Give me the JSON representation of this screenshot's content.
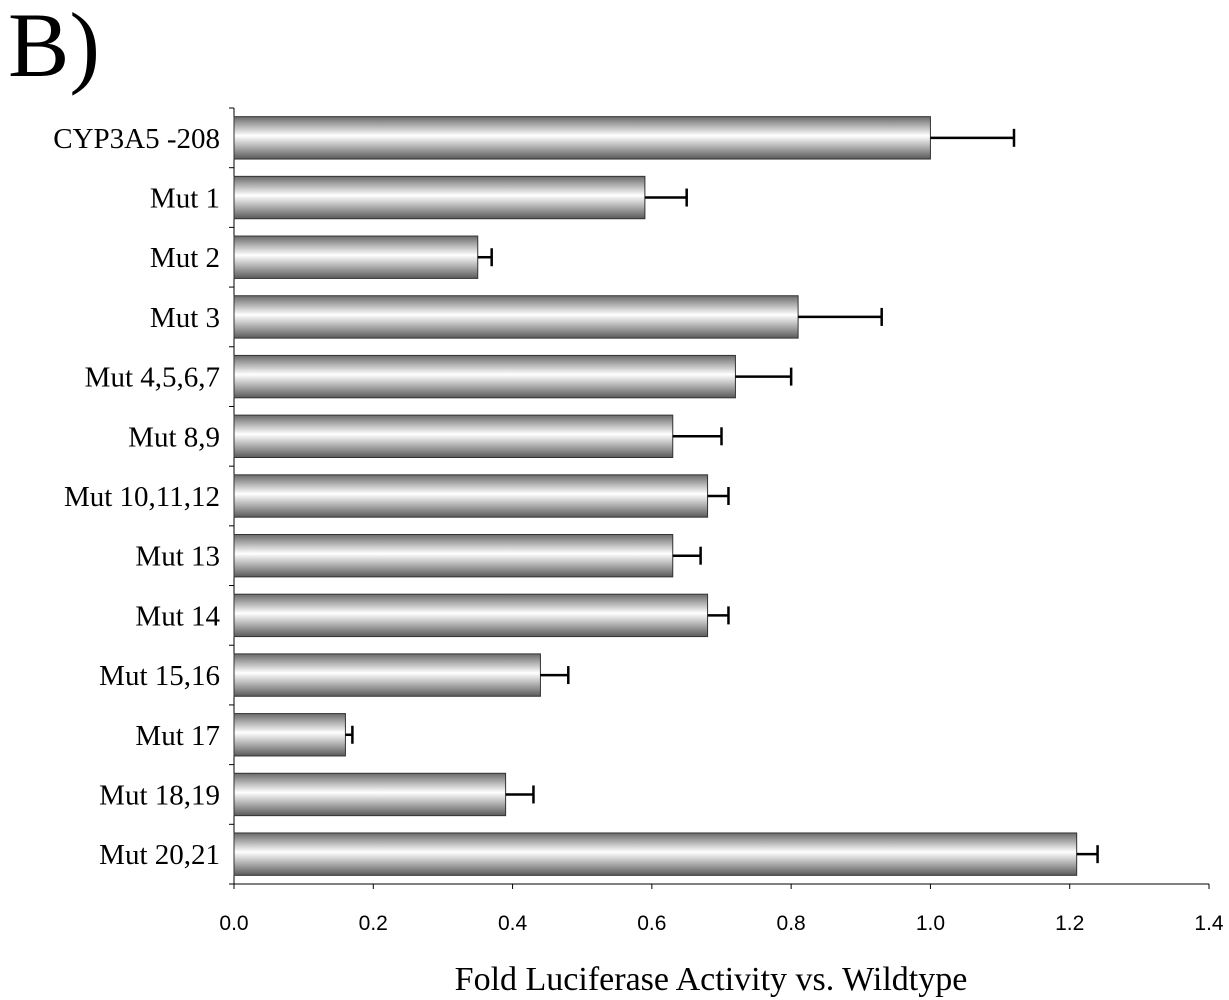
{
  "panel_label": "B)",
  "chart_data": {
    "type": "bar",
    "orientation": "horizontal",
    "categories": [
      "CYP3A5 -208",
      "Mut 1",
      "Mut 2",
      "Mut 3",
      "Mut 4,5,6,7",
      "Mut 8,9",
      "Mut 10,11,12",
      "Mut 13",
      "Mut 14",
      "Mut 15,16",
      "Mut 17",
      "Mut 18,19",
      "Mut 20,21"
    ],
    "values": [
      1.0,
      0.59,
      0.35,
      0.81,
      0.72,
      0.63,
      0.68,
      0.63,
      0.68,
      0.44,
      0.16,
      0.39,
      1.21
    ],
    "errors": [
      0.12,
      0.06,
      0.02,
      0.12,
      0.08,
      0.07,
      0.03,
      0.04,
      0.03,
      0.04,
      0.01,
      0.04,
      0.03
    ],
    "xlabel": "Fold Luciferase Activity vs. Wildtype",
    "ylabel": "",
    "xlim": [
      0,
      1.4
    ],
    "xticks": [
      "0.0",
      "0.2",
      "0.4",
      "0.6",
      "0.8",
      "1.0",
      "1.2",
      "1.4"
    ],
    "grid": false,
    "bar_color": "#d9d9d9"
  }
}
